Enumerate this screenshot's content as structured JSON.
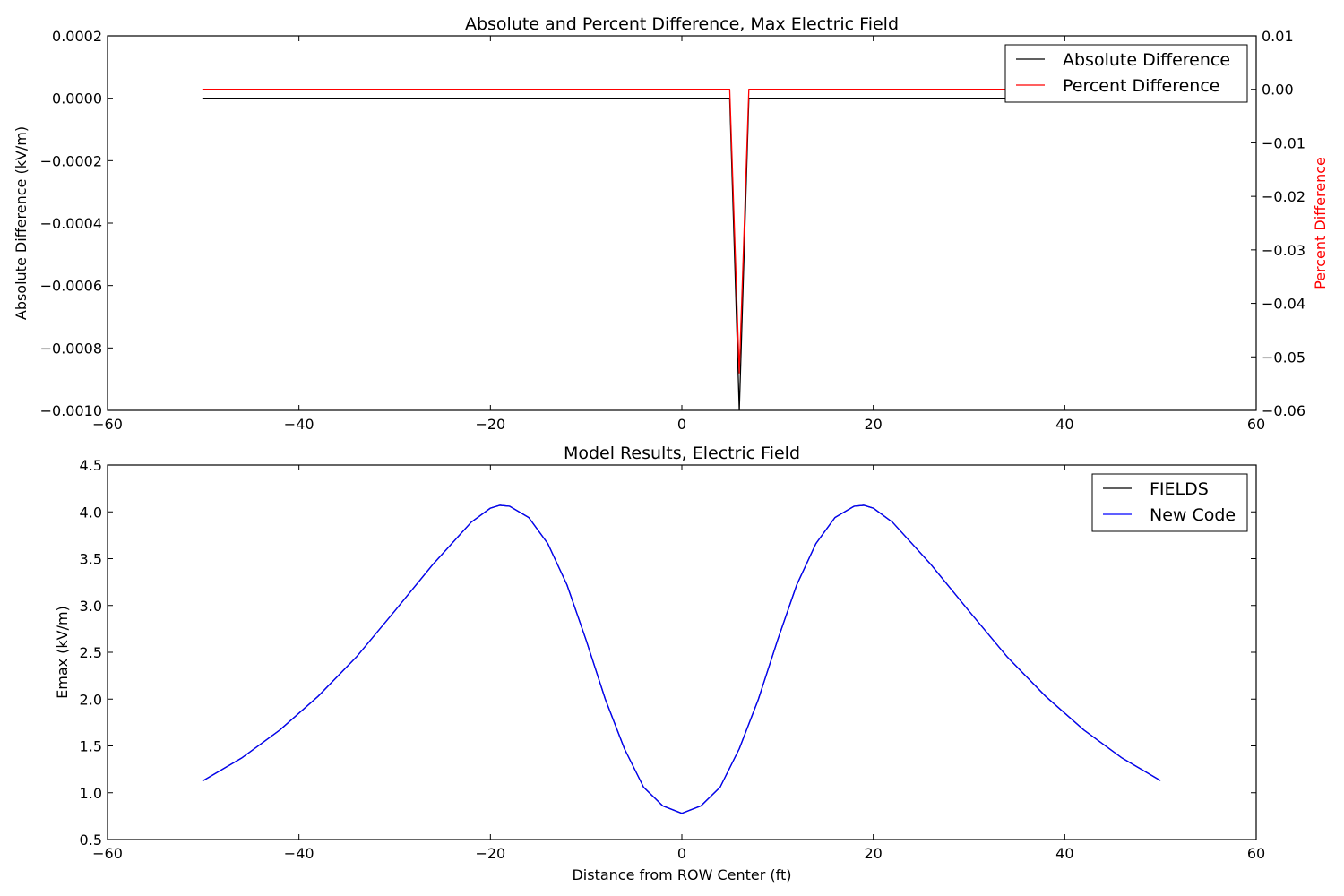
{
  "chart_data": [
    {
      "type": "line",
      "title": "Absolute and Percent Difference, Max Electric Field",
      "xlabel": "",
      "ylabel": "Absolute Difference (kV/m)",
      "y2label": "Percent Difference",
      "y2label_color": "#ff0000",
      "xlim": [
        -60,
        60
      ],
      "ylim": [
        -0.001,
        0.0002
      ],
      "y2lim": [
        -0.06,
        0.01
      ],
      "xticks": [
        -60,
        -40,
        -20,
        0,
        20,
        40,
        60
      ],
      "xtick_labels": [
        "−60",
        "−40",
        "−20",
        "0",
        "20",
        "40",
        "60"
      ],
      "yticks": [
        0.0002,
        0.0,
        -0.0002,
        -0.0004,
        -0.0006,
        -0.0008,
        -0.001
      ],
      "ytick_labels": [
        "0.0002",
        "0.0000",
        "−0.0002",
        "−0.0004",
        "−0.0006",
        "−0.0008",
        "−0.0010"
      ],
      "y2ticks": [
        0.01,
        0.0,
        -0.01,
        -0.02,
        -0.03,
        -0.04,
        -0.05,
        -0.06
      ],
      "y2tick_labels": [
        "0.01",
        "0.00",
        "−0.01",
        "−0.02",
        "−0.03",
        "−0.04",
        "−0.05",
        "−0.06"
      ],
      "grid": false,
      "legend_position": "top-right",
      "series": [
        {
          "name": "Absolute Difference",
          "axis": "left",
          "color": "#000000",
          "x": [
            -50,
            5,
            6,
            7,
            50
          ],
          "y": [
            0,
            0,
            -0.001,
            0,
            0
          ]
        },
        {
          "name": "Percent Difference",
          "axis": "right",
          "color": "#ff0000",
          "x": [
            -50,
            5,
            6,
            7,
            50
          ],
          "y": [
            0,
            0,
            -0.053,
            0,
            0
          ]
        }
      ]
    },
    {
      "type": "line",
      "title": "Model Results, Electric Field",
      "xlabel": "Distance from ROW Center (ft)",
      "ylabel": "Emax (kV/m)",
      "xlim": [
        -60,
        60
      ],
      "ylim": [
        0.5,
        4.5
      ],
      "xticks": [
        -60,
        -40,
        -20,
        0,
        20,
        40,
        60
      ],
      "xtick_labels": [
        "−60",
        "−40",
        "−20",
        "0",
        "20",
        "40",
        "60"
      ],
      "yticks": [
        4.5,
        4.0,
        3.5,
        3.0,
        2.5,
        2.0,
        1.5,
        1.0,
        0.5
      ],
      "ytick_labels": [
        "4.5",
        "4.0",
        "3.5",
        "3.0",
        "2.5",
        "2.0",
        "1.5",
        "1.0",
        "0.5"
      ],
      "grid": false,
      "legend_position": "top-right",
      "series": [
        {
          "name": "FIELDS",
          "color": "#000000",
          "x": [
            -50,
            -46,
            -42,
            -38,
            -34,
            -30,
            -26,
            -22,
            -20,
            -19,
            -18,
            -16,
            -14,
            -12,
            -10,
            -8,
            -6,
            -4,
            -2,
            0,
            2,
            4,
            6,
            8,
            10,
            12,
            14,
            16,
            18,
            19,
            20,
            22,
            26,
            30,
            34,
            38,
            42,
            46,
            50
          ],
          "y": [
            1.13,
            1.37,
            1.67,
            2.03,
            2.45,
            2.94,
            3.44,
            3.89,
            4.04,
            4.07,
            4.06,
            3.94,
            3.66,
            3.22,
            2.63,
            2.0,
            1.47,
            1.06,
            0.86,
            0.78,
            0.86,
            1.06,
            1.47,
            2.0,
            2.63,
            3.22,
            3.66,
            3.94,
            4.06,
            4.07,
            4.04,
            3.89,
            3.44,
            2.94,
            2.45,
            2.03,
            1.67,
            1.37,
            1.13
          ]
        },
        {
          "name": "New Code",
          "color": "#0000ff",
          "x": [
            -50,
            -46,
            -42,
            -38,
            -34,
            -30,
            -26,
            -22,
            -20,
            -19,
            -18,
            -16,
            -14,
            -12,
            -10,
            -8,
            -6,
            -4,
            -2,
            0,
            2,
            4,
            6,
            8,
            10,
            12,
            14,
            16,
            18,
            19,
            20,
            22,
            26,
            30,
            34,
            38,
            42,
            46,
            50
          ],
          "y": [
            1.13,
            1.37,
            1.67,
            2.03,
            2.45,
            2.94,
            3.44,
            3.89,
            4.04,
            4.07,
            4.06,
            3.94,
            3.66,
            3.22,
            2.63,
            2.0,
            1.47,
            1.06,
            0.86,
            0.78,
            0.86,
            1.06,
            1.47,
            2.0,
            2.63,
            3.22,
            3.66,
            3.94,
            4.06,
            4.07,
            4.04,
            3.89,
            3.44,
            2.94,
            2.45,
            2.03,
            1.67,
            1.37,
            1.13
          ]
        }
      ]
    }
  ]
}
